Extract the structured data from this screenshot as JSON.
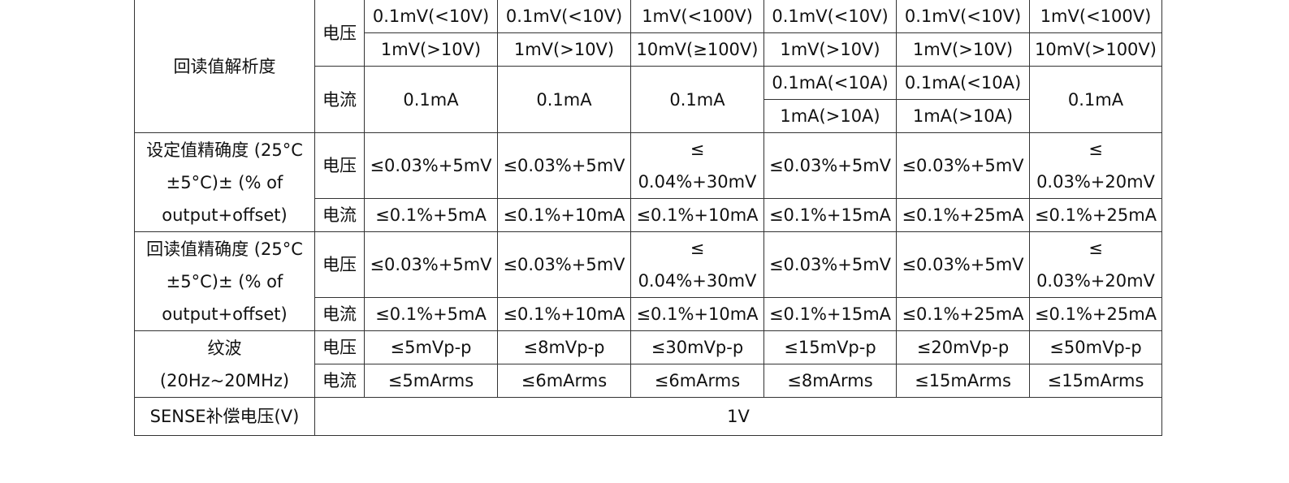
{
  "sections": [
    {
      "label": "回读值解析度",
      "rows": [
        {
          "type": "电压",
          "cells": [
            [
              "0.1mV(<10V)",
              "1mV(>10V)"
            ],
            [
              "0.1mV(<10V)",
              "1mV(>10V)"
            ],
            [
              "1mV(<100V)",
              "10mV(≥100V)"
            ],
            [
              "0.1mV(<10V)",
              "1mV(>10V)"
            ],
            [
              "0.1mV(<10V)",
              "1mV(>10V)"
            ],
            [
              "1mV(<100V)",
              "10mV(>100V)"
            ]
          ]
        },
        {
          "type": "电流",
          "cells": [
            "0.1mA",
            "0.1mA",
            "0.1mA",
            [
              "0.1mA(<10A)",
              "1mA(>10A)"
            ],
            [
              "0.1mA(<10A)",
              "1mA(>10A)"
            ],
            "0.1mA"
          ]
        }
      ]
    },
    {
      "label": "设定值精确度 (25°C\n±5°C)± (% of\noutput+offset)",
      "rows": [
        {
          "type": "电压",
          "cells": [
            "≤0.03%+5mV",
            "≤0.03%+5mV",
            "≤\n0.04%+30mV",
            "≤0.03%+5mV",
            "≤0.03%+5mV",
            "≤\n0.03%+20mV"
          ]
        },
        {
          "type": "电流",
          "cells": [
            "≤0.1%+5mA",
            "≤0.1%+10mA",
            "≤0.1%+10mA",
            "≤0.1%+15mA",
            "≤0.1%+25mA",
            "≤0.1%+25mA"
          ]
        }
      ]
    },
    {
      "label": "回读值精确度 (25°C\n±5°C)± (% of\noutput+offset)",
      "rows": [
        {
          "type": "电压",
          "cells": [
            "≤0.03%+5mV",
            "≤0.03%+5mV",
            "≤\n0.04%+30mV",
            "≤0.03%+5mV",
            "≤0.03%+5mV",
            "≤\n0.03%+20mV"
          ]
        },
        {
          "type": "电流",
          "cells": [
            "≤0.1%+5mA",
            "≤0.1%+10mA",
            "≤0.1%+10mA",
            "≤0.1%+15mA",
            "≤0.1%+25mA",
            "≤0.1%+25mA"
          ]
        }
      ]
    },
    {
      "label": "纹波\n(20Hz~20MHz)",
      "rows": [
        {
          "type": "电压",
          "cells": [
            "≤5mVp-p",
            "≤8mVp-p",
            "≤30mVp-p",
            "≤15mVp-p",
            "≤20mVp-p",
            "≤50mVp-p"
          ]
        },
        {
          "type": "电流",
          "cells": [
            "≤5mArms",
            "≤6mArms",
            "≤6mArms",
            "≤8mArms",
            "≤15mArms",
            "≤15mArms"
          ]
        }
      ]
    }
  ],
  "sense": {
    "label": "SENSE补偿电压(V)",
    "value": "1V"
  }
}
